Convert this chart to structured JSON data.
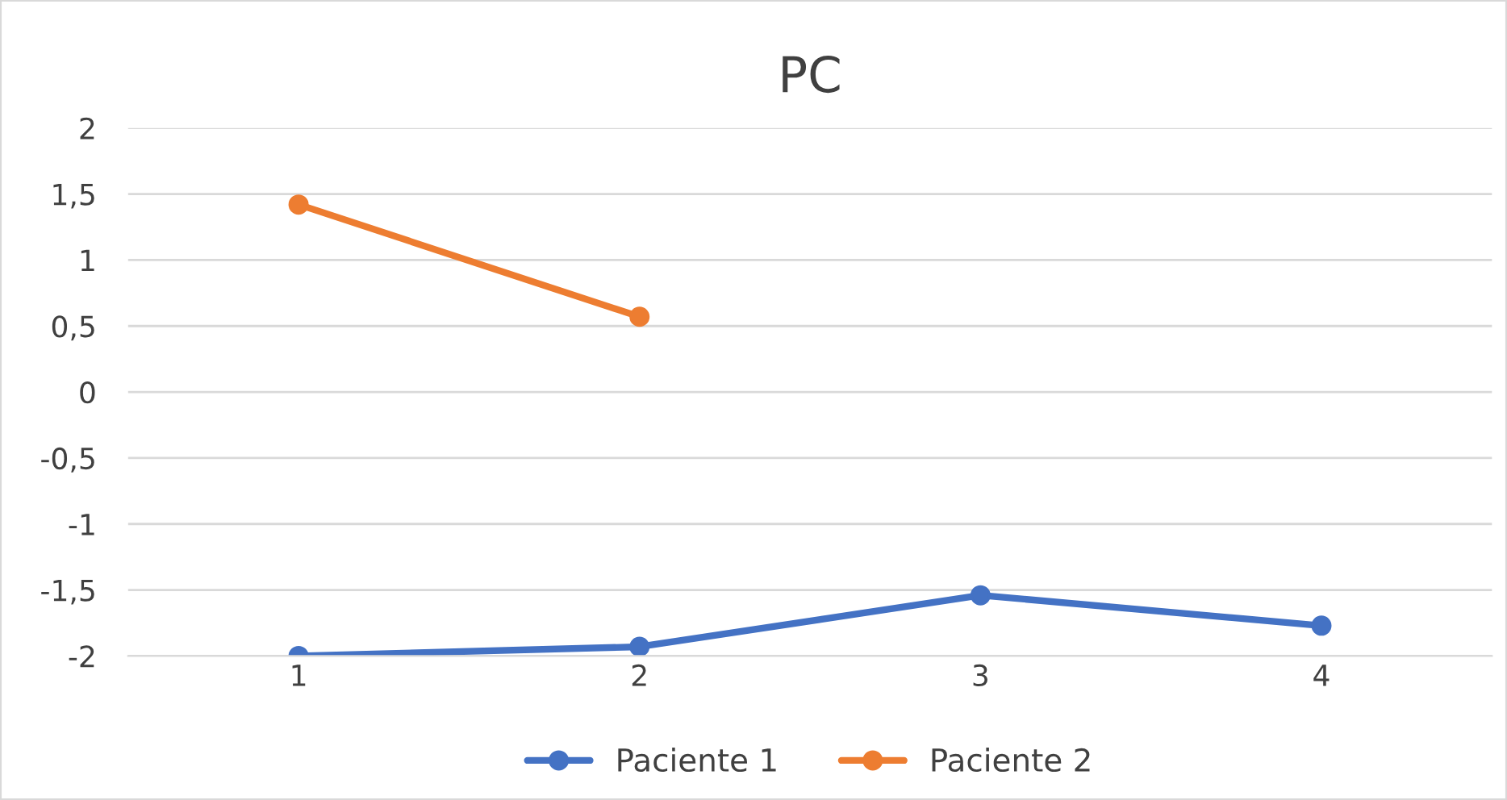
{
  "chart_data": {
    "type": "line",
    "title": "PC",
    "categories": [
      "1",
      "2",
      "3",
      "4"
    ],
    "series": [
      {
        "name": "Paciente 1",
        "color": "#4472c4",
        "values": [
          -2.0,
          -1.93,
          -1.54,
          -1.77
        ]
      },
      {
        "name": "Paciente 2",
        "color": "#ed7d31",
        "values": [
          1.42,
          0.57,
          null,
          null
        ]
      }
    ],
    "ylim": [
      -2,
      2
    ],
    "yticks": [
      {
        "value": -2,
        "label": "-2"
      },
      {
        "value": -1.5,
        "label": "-1,5"
      },
      {
        "value": -1,
        "label": "-1"
      },
      {
        "value": -0.5,
        "label": "-0,5"
      },
      0,
      {
        "value": 0.5,
        "label": "0,5"
      },
      1,
      {
        "value": 1.5,
        "label": "1,5"
      },
      2
    ],
    "grid": "y",
    "legend": "bottom",
    "marker": "circle",
    "line_style": "solid"
  }
}
